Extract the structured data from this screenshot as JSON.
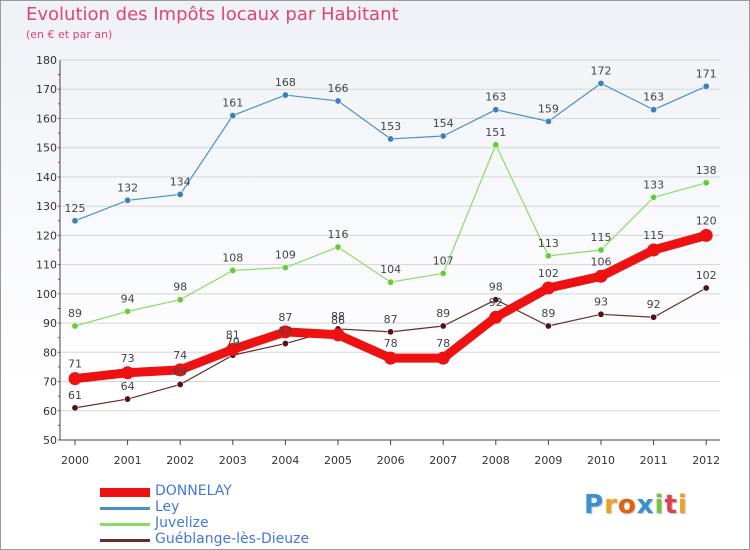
{
  "colors": {
    "title": "#e0456b",
    "legend_text": "#4477dd",
    "axis": "#444444",
    "grid": "#d6d6d6"
  },
  "chart_data": {
    "type": "line",
    "title": "Evolution des Impôts locaux par Habitant",
    "subtitle": "(en € et par an)",
    "xlabel": "",
    "ylabel": "",
    "ylim": [
      50,
      180
    ],
    "yticks": [
      50,
      60,
      70,
      80,
      90,
      100,
      110,
      120,
      130,
      140,
      150,
      160,
      170,
      180
    ],
    "grid": true,
    "legend_position": "bottom-left",
    "categories": [
      "2000",
      "2001",
      "2002",
      "2003",
      "2004",
      "2005",
      "2006",
      "2007",
      "2008",
      "2009",
      "2010",
      "2011",
      "2012"
    ],
    "series": [
      {
        "name": "DONNELAY",
        "color": "#ee1111",
        "emphasis": true,
        "values": [
          71,
          73,
          74,
          81,
          87,
          86,
          78,
          78,
          92,
          102,
          106,
          115,
          120
        ]
      },
      {
        "name": "Ley",
        "color": "#4a90c8",
        "marker": "#3a7fc0",
        "values": [
          125,
          132,
          134,
          161,
          168,
          166,
          153,
          154,
          163,
          159,
          172,
          163,
          171
        ]
      },
      {
        "name": "Juvelize",
        "color": "#88dd66",
        "marker": "#66cc33",
        "values": [
          89,
          94,
          98,
          108,
          109,
          116,
          104,
          107,
          151,
          113,
          115,
          133,
          138
        ]
      },
      {
        "name": "Guéblange-lès-Dieuze",
        "color": "#6b2a2a",
        "marker": "#551111",
        "values": [
          61,
          64,
          69,
          79,
          83,
          88,
          87,
          89,
          98,
          89,
          93,
          92,
          102
        ]
      }
    ]
  },
  "logo": {
    "letters": [
      {
        "ch": "P",
        "color": "#3a8fd0"
      },
      {
        "ch": "r",
        "color": "#f0a020"
      },
      {
        "ch": "o",
        "color": "#e06010"
      },
      {
        "ch": "x",
        "color": "#3a8fd0"
      },
      {
        "ch": "i",
        "color": "#7ac040"
      },
      {
        "ch": "t",
        "color": "#e04050"
      },
      {
        "ch": "i",
        "color": "#f0a020"
      }
    ]
  }
}
